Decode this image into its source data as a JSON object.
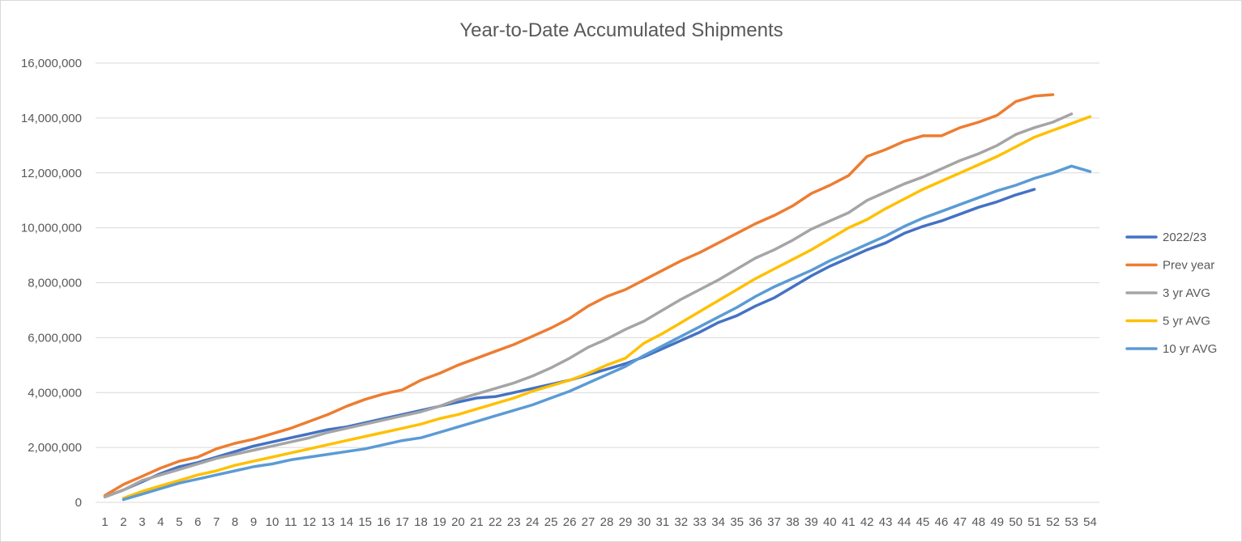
{
  "chart_data": {
    "type": "line",
    "title": "Year-to-Date Accumulated Shipments",
    "xlabel": "",
    "ylabel": "",
    "ylim": [
      0,
      16000000
    ],
    "yticks": [
      0,
      2000000,
      4000000,
      6000000,
      8000000,
      10000000,
      12000000,
      14000000,
      16000000
    ],
    "ytick_labels": [
      "0",
      "2,000,000",
      "4,000,000",
      "6,000,000",
      "8,000,000",
      "10,000,000",
      "12,000,000",
      "14,000,000",
      "16,000,000"
    ],
    "categories": [
      "1",
      "2",
      "3",
      "4",
      "5",
      "6",
      "7",
      "8",
      "9",
      "10",
      "11",
      "12",
      "13",
      "14",
      "15",
      "16",
      "17",
      "18",
      "19",
      "20",
      "21",
      "22",
      "23",
      "24",
      "25",
      "26",
      "27",
      "28",
      "29",
      "30",
      "31",
      "32",
      "33",
      "34",
      "35",
      "36",
      "37",
      "38",
      "39",
      "40",
      "41",
      "42",
      "43",
      "44",
      "45",
      "46",
      "47",
      "48",
      "49",
      "50",
      "51",
      "52",
      "53",
      "54"
    ],
    "grid": true,
    "legend_position": "right",
    "series": [
      {
        "name": "2022/23",
        "color": "#4472c4",
        "values": [
          200000,
          450000,
          750000,
          1050000,
          1300000,
          1450000,
          1650000,
          1850000,
          2050000,
          2200000,
          2350000,
          2500000,
          2650000,
          2750000,
          2900000,
          3050000,
          3200000,
          3350000,
          3500000,
          3650000,
          3800000,
          3850000,
          4000000,
          4150000,
          4300000,
          4450000,
          4650000,
          4850000,
          5050000,
          5300000,
          5600000,
          5900000,
          6200000,
          6550000,
          6800000,
          7150000,
          7450000,
          7850000,
          8250000,
          8600000,
          8900000,
          9200000,
          9450000,
          9800000,
          10050000,
          10250000,
          10500000,
          10750000,
          10950000,
          11200000,
          11400000,
          null,
          null,
          null
        ]
      },
      {
        "name": "Prev  year",
        "color": "#ed7d31",
        "values": [
          250000,
          650000,
          950000,
          1250000,
          1500000,
          1650000,
          1950000,
          2150000,
          2300000,
          2500000,
          2700000,
          2950000,
          3200000,
          3500000,
          3750000,
          3950000,
          4100000,
          4450000,
          4700000,
          5000000,
          5250000,
          5500000,
          5750000,
          6050000,
          6350000,
          6700000,
          7150000,
          7500000,
          7750000,
          8100000,
          8450000,
          8800000,
          9100000,
          9450000,
          9800000,
          10150000,
          10450000,
          10800000,
          11250000,
          11550000,
          11900000,
          12600000,
          12850000,
          13150000,
          13350000,
          13350000,
          13650000,
          13850000,
          14100000,
          14600000,
          14800000,
          14850000,
          null,
          null
        ]
      },
      {
        "name": "3 yr AVG",
        "color": "#a5a5a5",
        "values": [
          200000,
          450000,
          800000,
          1000000,
          1200000,
          1400000,
          1600000,
          1750000,
          1900000,
          2050000,
          2200000,
          2350000,
          2550000,
          2700000,
          2850000,
          3000000,
          3150000,
          3300000,
          3500000,
          3750000,
          3950000,
          4150000,
          4350000,
          4600000,
          4900000,
          5250000,
          5650000,
          5950000,
          6300000,
          6600000,
          7000000,
          7400000,
          7750000,
          8100000,
          8500000,
          8900000,
          9200000,
          9550000,
          9950000,
          10250000,
          10550000,
          11000000,
          11300000,
          11600000,
          11850000,
          12150000,
          12450000,
          12700000,
          13000000,
          13400000,
          13650000,
          13850000,
          14150000,
          null
        ]
      },
      {
        "name": "5 yr AVG",
        "color": "#ffc000",
        "values": [
          null,
          150000,
          400000,
          600000,
          800000,
          1000000,
          1150000,
          1350000,
          1500000,
          1650000,
          1800000,
          1950000,
          2100000,
          2250000,
          2400000,
          2550000,
          2700000,
          2850000,
          3050000,
          3200000,
          3400000,
          3600000,
          3800000,
          4050000,
          4250000,
          4450000,
          4700000,
          5000000,
          5250000,
          5800000,
          6150000,
          6550000,
          6950000,
          7350000,
          7750000,
          8150000,
          8500000,
          8850000,
          9200000,
          9600000,
          10000000,
          10300000,
          10700000,
          11050000,
          11400000,
          11700000,
          12000000,
          12300000,
          12600000,
          12950000,
          13300000,
          13550000,
          13800000,
          14050000
        ]
      },
      {
        "name": "10 yr AVG",
        "color": "#5b9bd5",
        "values": [
          null,
          100000,
          300000,
          500000,
          700000,
          850000,
          1000000,
          1150000,
          1300000,
          1400000,
          1550000,
          1650000,
          1750000,
          1850000,
          1950000,
          2100000,
          2250000,
          2350000,
          2550000,
          2750000,
          2950000,
          3150000,
          3350000,
          3550000,
          3800000,
          4050000,
          4350000,
          4650000,
          4950000,
          5350000,
          5700000,
          6050000,
          6400000,
          6750000,
          7100000,
          7500000,
          7850000,
          8150000,
          8450000,
          8800000,
          9100000,
          9400000,
          9700000,
          10050000,
          10350000,
          10600000,
          10850000,
          11100000,
          11350000,
          11550000,
          11800000,
          12000000,
          12250000,
          12050000
        ]
      }
    ]
  }
}
